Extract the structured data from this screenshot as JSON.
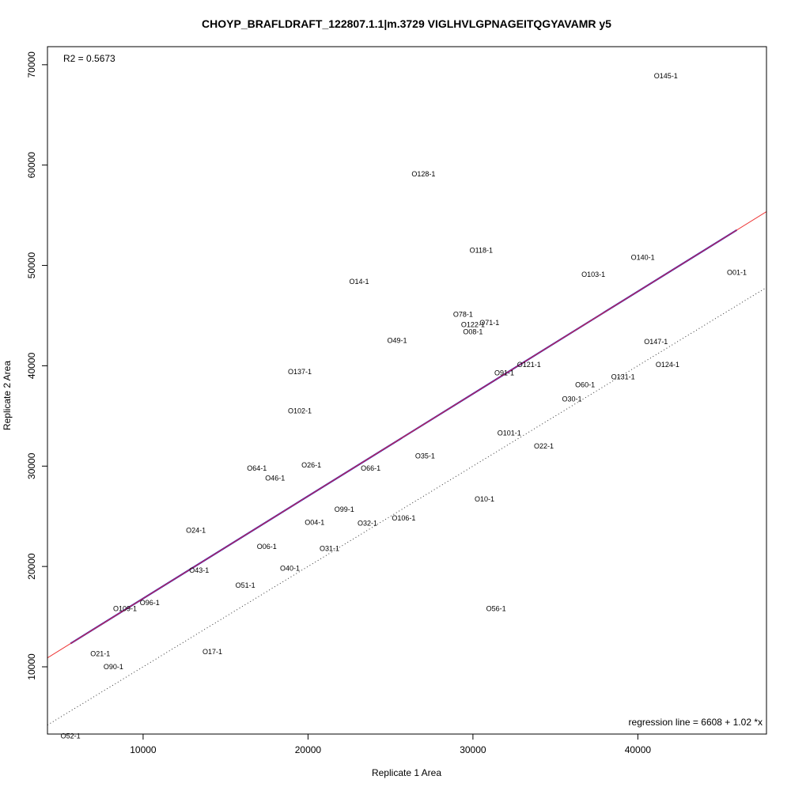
{
  "chart_data": {
    "type": "scatter",
    "title": "CHOYP_BRAFLDRAFT_122807.1.1|m.3729 VIGLHVLGPNAGEITQGYAVAMR y5",
    "xlabel": "Replicate 1 Area",
    "ylabel": "Replicate 2 Area",
    "xlim": [
      4200,
      47800
    ],
    "ylim": [
      3300,
      71800
    ],
    "x_ticks": [
      10000,
      20000,
      30000,
      40000
    ],
    "y_ticks": [
      10000,
      20000,
      30000,
      40000,
      50000,
      60000,
      70000
    ],
    "x_tick_labels": [
      "10000",
      "20000",
      "30000",
      "40000"
    ],
    "y_tick_labels": [
      "10000",
      "20000",
      "30000",
      "40000",
      "50000",
      "60000",
      "70000"
    ],
    "grid": false,
    "points": [
      {
        "label": "O145-1",
        "x": 41700,
        "y": 68900
      },
      {
        "label": "O128-1",
        "x": 27000,
        "y": 59100
      },
      {
        "label": "O118-1",
        "x": 30500,
        "y": 51500
      },
      {
        "label": "O140-1",
        "x": 40300,
        "y": 50800
      },
      {
        "label": "O103-1",
        "x": 37300,
        "y": 49100
      },
      {
        "label": "O01-1",
        "x": 46000,
        "y": 49300
      },
      {
        "label": "O14-1",
        "x": 23100,
        "y": 48400
      },
      {
        "label": "O78-1",
        "x": 29400,
        "y": 45100
      },
      {
        "label": "O122-1",
        "x": 30000,
        "y": 44100
      },
      {
        "label": "O71-1",
        "x": 31000,
        "y": 44300
      },
      {
        "label": "O08-1",
        "x": 30000,
        "y": 43400
      },
      {
        "label": "O49-1",
        "x": 25400,
        "y": 42500
      },
      {
        "label": "O147-1",
        "x": 41100,
        "y": 42400
      },
      {
        "label": "O124-1",
        "x": 41800,
        "y": 40100
      },
      {
        "label": "O121-1",
        "x": 33400,
        "y": 40100
      },
      {
        "label": "O137-1",
        "x": 19500,
        "y": 39400
      },
      {
        "label": "O91-1",
        "x": 31900,
        "y": 39300
      },
      {
        "label": "O131-1",
        "x": 39100,
        "y": 38900
      },
      {
        "label": "O60-1",
        "x": 36800,
        "y": 38100
      },
      {
        "label": "O30-1",
        "x": 36000,
        "y": 36700
      },
      {
        "label": "O102-1",
        "x": 19500,
        "y": 35500
      },
      {
        "label": "O101-1",
        "x": 32200,
        "y": 33300
      },
      {
        "label": "O22-1",
        "x": 34300,
        "y": 32000
      },
      {
        "label": "O35-1",
        "x": 27100,
        "y": 31000
      },
      {
        "label": "O26-1",
        "x": 20200,
        "y": 30100
      },
      {
        "label": "O64-1",
        "x": 16900,
        "y": 29800
      },
      {
        "label": "O66-1",
        "x": 23800,
        "y": 29800
      },
      {
        "label": "O46-1",
        "x": 18000,
        "y": 28800
      },
      {
        "label": "O10-1",
        "x": 30700,
        "y": 26700
      },
      {
        "label": "O99-1",
        "x": 22200,
        "y": 25700
      },
      {
        "label": "O106-1",
        "x": 25800,
        "y": 24800
      },
      {
        "label": "O04-1",
        "x": 20400,
        "y": 24400
      },
      {
        "label": "O32-1",
        "x": 23600,
        "y": 24300
      },
      {
        "label": "O24-1",
        "x": 13200,
        "y": 23600
      },
      {
        "label": "O06-1",
        "x": 17500,
        "y": 22000
      },
      {
        "label": "O31-1",
        "x": 21300,
        "y": 21800
      },
      {
        "label": "O40-1",
        "x": 18900,
        "y": 19800
      },
      {
        "label": "O43-1",
        "x": 13400,
        "y": 19600
      },
      {
        "label": "O51-1",
        "x": 16200,
        "y": 18100
      },
      {
        "label": "O96-1",
        "x": 10400,
        "y": 16400
      },
      {
        "label": "O109-1",
        "x": 8900,
        "y": 15800
      },
      {
        "label": "O56-1",
        "x": 31400,
        "y": 15800
      },
      {
        "label": "O17-1",
        "x": 14200,
        "y": 11500
      },
      {
        "label": "O21-1",
        "x": 7400,
        "y": 11300
      },
      {
        "label": "O90-1",
        "x": 8200,
        "y": 10000
      },
      {
        "label": "O52-1",
        "x": 5600,
        "y": 3100
      }
    ],
    "lines": [
      {
        "name": "regression",
        "color": "#0000cc",
        "style": "solid",
        "x": [
          5600,
          46000
        ],
        "y": [
          12320,
          53528
        ]
      },
      {
        "name": "fit",
        "color": "#ee3333",
        "style": "solid",
        "intercept": 6608,
        "slope": 1.02
      },
      {
        "name": "identity",
        "color": "#333333",
        "style": "dotted",
        "intercept": 0,
        "slope": 1
      }
    ],
    "annotations": {
      "r2": "R2 = 0.5673",
      "regression": "regression line = 6608 + 1.02 *x"
    }
  }
}
